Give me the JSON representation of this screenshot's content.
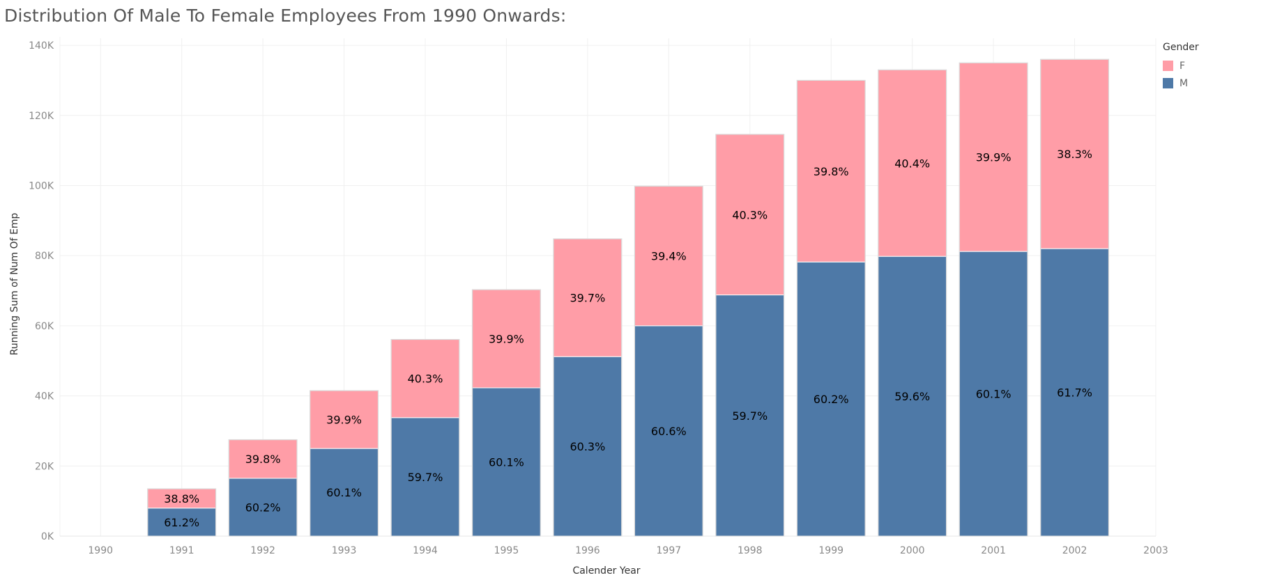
{
  "title": "Distribution Of Male To Female Employees From 1990 Onwards:",
  "colors": {
    "F": "#ff9da7",
    "M": "#4e79a7",
    "grid": "#f0f0f0",
    "tick": "#888888",
    "label": "#000000"
  },
  "legend": {
    "title": "Gender",
    "items": [
      {
        "key": "F",
        "label": "F"
      },
      {
        "key": "M",
        "label": "M"
      }
    ]
  },
  "chart_data": {
    "type": "bar",
    "stacked": true,
    "title": "Distribution Of Male To Female Employees From 1990 Onwards:",
    "xlabel": "Calender Year",
    "ylabel": "Running Sum of Num Of Emp",
    "x_ticks": [
      "1990",
      "1991",
      "1992",
      "1993",
      "1994",
      "1995",
      "1996",
      "1997",
      "1998",
      "1999",
      "2000",
      "2001",
      "2002",
      "2003"
    ],
    "y_ticks": [
      "0K",
      "20K",
      "40K",
      "60K",
      "80K",
      "100K",
      "120K",
      "140K"
    ],
    "ylim": [
      0,
      142000
    ],
    "xlim": [
      1989.5,
      2003
    ],
    "grid": true,
    "legend_position": "top-right",
    "categories": [
      "1991",
      "1992",
      "1993",
      "1994",
      "1995",
      "1996",
      "1997",
      "1998",
      "1999",
      "2000",
      "2001",
      "2002"
    ],
    "series": [
      {
        "name": "M",
        "values": [
          8000,
          16500,
          25000,
          33800,
          42300,
          51200,
          60000,
          68800,
          78200,
          79800,
          81200,
          82000
        ],
        "labels": [
          "61.2%",
          "60.2%",
          "60.1%",
          "59.7%",
          "60.1%",
          "60.3%",
          "60.6%",
          "59.7%",
          "60.2%",
          "59.6%",
          "60.1%",
          "61.7%"
        ]
      },
      {
        "name": "F",
        "values": [
          5500,
          11000,
          16500,
          22300,
          28000,
          33600,
          39800,
          45800,
          51800,
          53200,
          53800,
          54000
        ],
        "labels": [
          "38.8%",
          "39.8%",
          "39.9%",
          "40.3%",
          "39.9%",
          "39.7%",
          "39.4%",
          "40.3%",
          "39.8%",
          "40.4%",
          "39.9%",
          "38.3%"
        ]
      }
    ]
  }
}
